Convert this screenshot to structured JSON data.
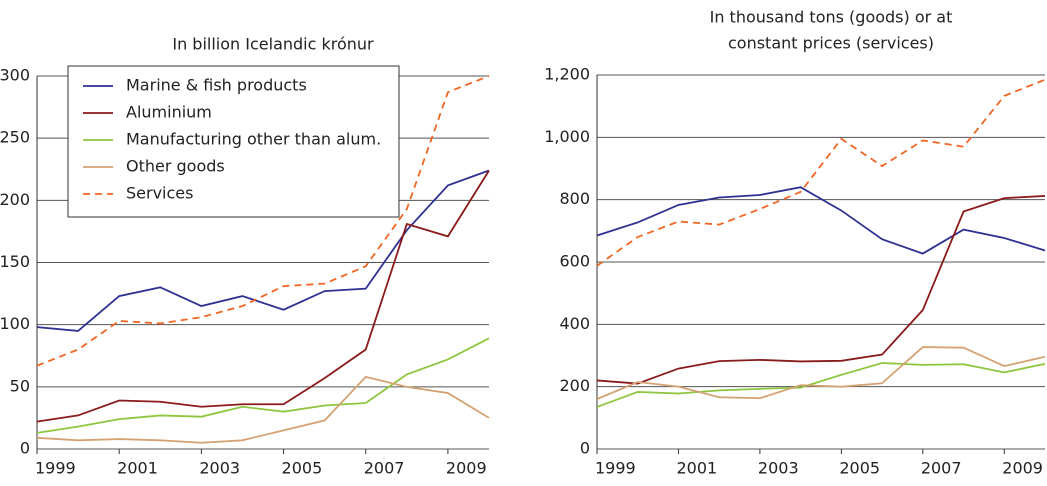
{
  "chart_data": [
    {
      "type": "line",
      "title": [
        "In billion Icelandic krónur"
      ],
      "x": [
        1999,
        2000,
        2001,
        2002,
        2003,
        2004,
        2005,
        2006,
        2007,
        2008,
        2009,
        2010
      ],
      "xlim": [
        1999,
        2010
      ],
      "xticks": [
        1999,
        2001,
        2003,
        2005,
        2007,
        2009
      ],
      "ylim": [
        0,
        300
      ],
      "yticks": [
        0,
        50,
        100,
        150,
        200,
        250,
        300
      ],
      "grid": true,
      "legend": "upper left",
      "series": [
        {
          "name": "Marine & fish products",
          "color": "#2e3192",
          "style": "solid",
          "values": [
            98,
            95,
            123,
            130,
            115,
            123,
            112,
            127,
            129,
            176,
            212,
            224
          ]
        },
        {
          "name": "Aluminium",
          "color": "#8b1a1a",
          "style": "solid",
          "values": [
            22,
            27,
            39,
            38,
            34,
            36,
            36,
            57,
            80,
            181,
            171,
            224
          ]
        },
        {
          "name": "Manufacturing other than alum.",
          "color": "#8dc63f",
          "style": "solid",
          "values": [
            13,
            18,
            24,
            27,
            26,
            34,
            30,
            35,
            37,
            60,
            72,
            89
          ]
        },
        {
          "name": "Other goods",
          "color": "#d4a373",
          "style": "solid",
          "values": [
            9,
            7,
            8,
            7,
            5,
            7,
            15,
            23,
            58,
            50,
            45,
            25
          ]
        },
        {
          "name": "Services",
          "color": "#f26522",
          "style": "dashed",
          "values": [
            67,
            80,
            103,
            101,
            106,
            115,
            131,
            133,
            147,
            193,
            287,
            300
          ]
        }
      ]
    },
    {
      "type": "line",
      "title": [
        "In thousand tons (goods) or at",
        "constant prices (services)"
      ],
      "x": [
        1999,
        2000,
        2001,
        2002,
        2003,
        2004,
        2005,
        2006,
        2007,
        2008,
        2009,
        2010
      ],
      "xlim": [
        1999,
        2010
      ],
      "xticks": [
        1999,
        2001,
        2003,
        2005,
        2007,
        2009
      ],
      "ylim": [
        0,
        1200
      ],
      "yticks": [
        0,
        200,
        400,
        600,
        800,
        {
          "value": 1000,
          "label": "1,000"
        },
        {
          "value": 1200,
          "label": "1,200"
        }
      ],
      "grid": true,
      "series": [
        {
          "color": "#2e3192",
          "style": "solid",
          "values": [
            685,
            727,
            783,
            807,
            815,
            840,
            765,
            673,
            627,
            704,
            677,
            637
          ]
        },
        {
          "color": "#8b1a1a",
          "style": "solid",
          "values": [
            220,
            210,
            258,
            282,
            286,
            281,
            283,
            303,
            446,
            762,
            805,
            812
          ]
        },
        {
          "color": "#8dc63f",
          "style": "solid",
          "values": [
            135,
            183,
            178,
            188,
            193,
            197,
            238,
            276,
            270,
            272,
            246,
            273
          ]
        },
        {
          "color": "#d4a373",
          "style": "solid",
          "values": [
            160,
            215,
            200,
            166,
            163,
            205,
            200,
            211,
            327,
            325,
            266,
            296
          ]
        },
        {
          "color": "#f26522",
          "style": "dashed",
          "values": [
            588,
            680,
            730,
            720,
            770,
            825,
            995,
            908,
            990,
            970,
            1133,
            1185
          ]
        }
      ]
    }
  ]
}
